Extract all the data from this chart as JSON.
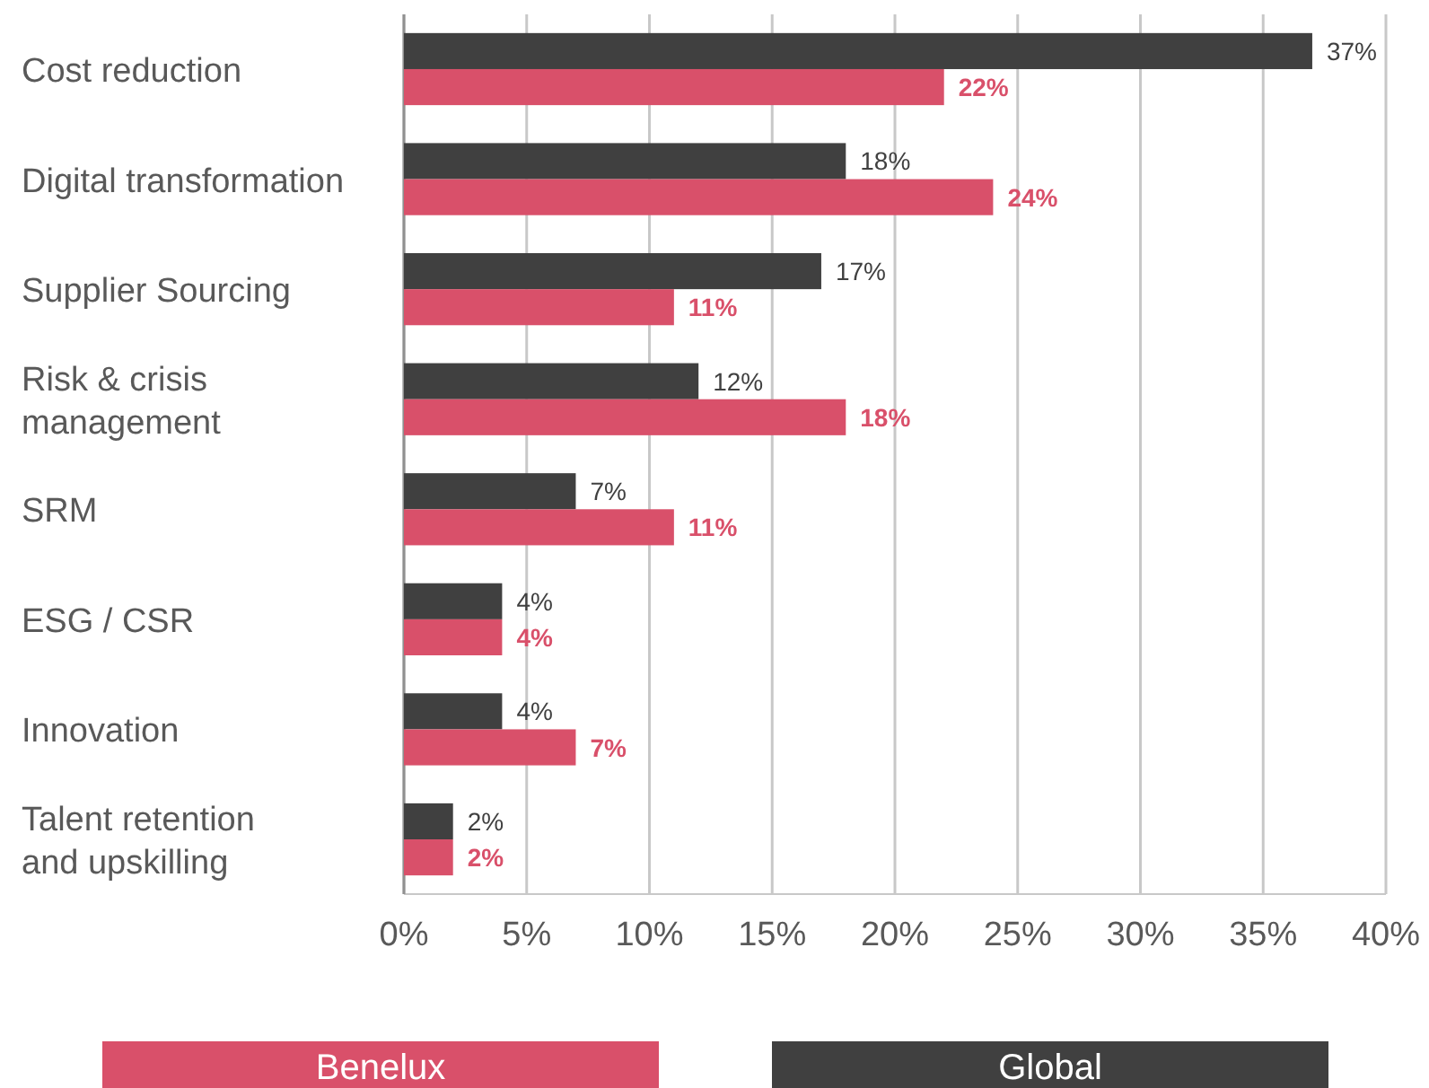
{
  "chart_data": {
    "type": "bar",
    "orientation": "horizontal",
    "categories": [
      "Cost reduction",
      "Digital transformation",
      "Supplier Sourcing",
      "Risk & crisis\nmanagement",
      "SRM",
      "ESG / CSR",
      "Innovation",
      "Talent retention\nand upskilling"
    ],
    "series": [
      {
        "name": "Global",
        "color": "#404040",
        "values": [
          37,
          18,
          17,
          12,
          7,
          4,
          4,
          2
        ],
        "value_labels": [
          "37%",
          "18%",
          "17%",
          "12%",
          "7%",
          "4%",
          "4%",
          "2%"
        ]
      },
      {
        "name": "Benelux",
        "color": "#d9506a",
        "values": [
          22,
          24,
          11,
          18,
          11,
          4,
          7,
          2
        ],
        "value_labels": [
          "22%",
          "24%",
          "11%",
          "18%",
          "11%",
          "4%",
          "7%",
          "2%"
        ]
      }
    ],
    "xlim": [
      0,
      40
    ],
    "xticks": [
      {
        "value": 0,
        "label": "0%"
      },
      {
        "value": 5,
        "label": "5%"
      },
      {
        "value": 10,
        "label": "10%"
      },
      {
        "value": 15,
        "label": "15%"
      },
      {
        "value": 20,
        "label": "20%"
      },
      {
        "value": 25,
        "label": "25%"
      },
      {
        "value": 30,
        "label": "30%"
      },
      {
        "value": 35,
        "label": "35%"
      },
      {
        "value": 40,
        "label": "40%"
      }
    ],
    "grid": "x",
    "legend": "bottom"
  }
}
